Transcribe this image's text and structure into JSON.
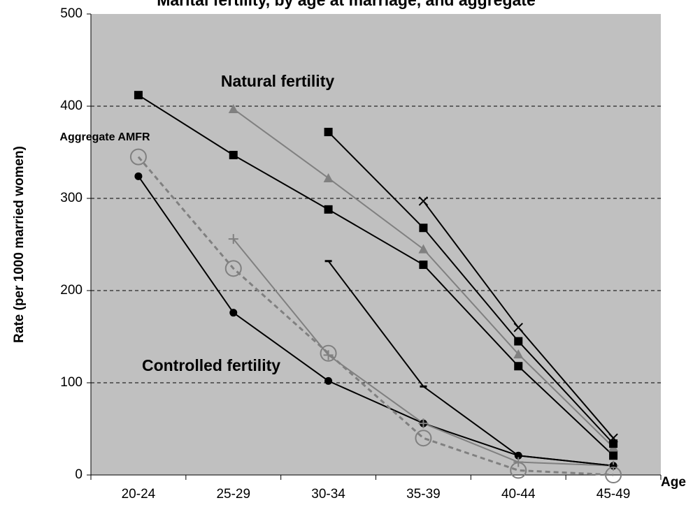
{
  "chart_data": {
    "type": "line",
    "title": "Marital fertility, by age at marriage, and aggregate",
    "y_label": "Rate (per 1000 married women)",
    "x_label": "Age",
    "annotations": [
      "Natural fertility",
      "Controlled fertility",
      "Aggregate AMFR"
    ],
    "categories": [
      "20-24",
      "25-29",
      "30-34",
      "35-39",
      "40-44",
      "45-49"
    ],
    "ylim": [
      0,
      500
    ],
    "yticks": [
      0,
      100,
      200,
      300,
      400,
      500
    ],
    "grid": true,
    "series": [
      {
        "color": "#000000",
        "marker": "square",
        "values": [
          412,
          347,
          288,
          228,
          118,
          21
        ]
      },
      {
        "color": "#808080",
        "marker": "triangle",
        "values": [
          null,
          397,
          322,
          245,
          131,
          30
        ]
      },
      {
        "color": "#000000",
        "marker": "square",
        "values": [
          null,
          null,
          372,
          268,
          145,
          34
        ]
      },
      {
        "color": "#000000",
        "marker": "x",
        "values": [
          null,
          null,
          null,
          297,
          160,
          40
        ]
      },
      {
        "color": "#000000",
        "marker": "circle",
        "values": [
          324,
          176,
          102,
          56,
          21,
          10
        ]
      },
      {
        "color": "#808080",
        "marker": "plus",
        "values": [
          null,
          256,
          130,
          56,
          14,
          10
        ]
      },
      {
        "color": "#000000",
        "marker": "dash",
        "values": [
          null,
          null,
          232,
          96,
          21,
          10
        ]
      },
      {
        "color": "#808080",
        "marker": "open-circle",
        "dashed": true,
        "values": [
          345,
          224,
          132,
          40,
          5,
          0
        ]
      }
    ]
  }
}
